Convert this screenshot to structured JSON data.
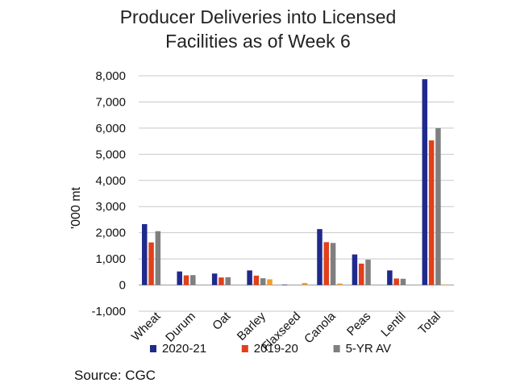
{
  "chart_data": {
    "type": "bar",
    "title_lines": [
      "Producer Deliveries into Licensed",
      "Facilities as of Week 6"
    ],
    "ylabel": "'000 mt",
    "xlabel": "",
    "ylim": [
      -1000,
      8000
    ],
    "yticks": [
      "8,000",
      "7,000",
      "6,000",
      "5,000",
      "4,000",
      "3,000",
      "2,000",
      "1,000",
      "0",
      "-1,000"
    ],
    "ytick_values": [
      8000,
      7000,
      6000,
      5000,
      4000,
      3000,
      2000,
      1000,
      0,
      -1000
    ],
    "grid": true,
    "legend_position": "bottom",
    "categories": [
      "Wheat",
      "Durum",
      "Oat",
      "Barley",
      "Flaxseed",
      "Canola",
      "Peas",
      "Lentil",
      "Total"
    ],
    "series": [
      {
        "name": "2020-21",
        "color": "#1f2a8c",
        "values": [
          2330,
          520,
          440,
          560,
          20,
          2140,
          1170,
          560,
          7870
        ]
      },
      {
        "name": "2019-20",
        "color": "#e0401a",
        "values": [
          1630,
          370,
          290,
          360,
          0,
          1640,
          820,
          250,
          5530
        ]
      },
      {
        "name": "5-YR AV",
        "color": "#7f7f7f",
        "values": [
          2060,
          380,
          300,
          260,
          0,
          1610,
          970,
          240,
          6000
        ]
      },
      {
        "name": "",
        "color": "#f39c2c",
        "values": [
          0,
          0,
          0,
          220,
          80,
          60,
          0,
          0,
          20
        ]
      }
    ],
    "source": "Source: CGC"
  }
}
